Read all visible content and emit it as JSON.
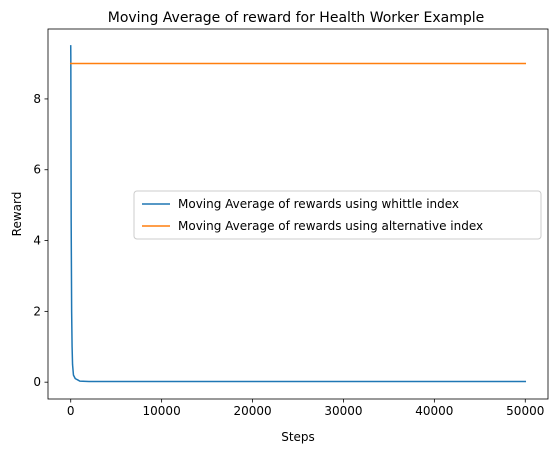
{
  "chart_data": {
    "type": "line",
    "title": "Moving Average of reward for Health Worker Example",
    "xlabel": "Steps",
    "ylabel": "Reward",
    "xlim": [
      -2500,
      52500
    ],
    "ylim": [
      -0.475,
      9.975
    ],
    "xticks": [
      0,
      10000,
      20000,
      30000,
      40000,
      50000
    ],
    "xtick_labels": [
      "0",
      "10000",
      "20000",
      "30000",
      "40000",
      "50000"
    ],
    "yticks": [
      0,
      2,
      4,
      6,
      8
    ],
    "ytick_labels": [
      "0",
      "2",
      "4",
      "6",
      "8"
    ],
    "grid": false,
    "legend_position": "center-right",
    "series": [
      {
        "name": "Moving Average of rewards using whittle index",
        "color": "#1f77b4",
        "x": [
          0,
          10,
          25,
          50,
          100,
          150,
          200,
          300,
          500,
          800,
          1000,
          2000,
          5000,
          10000,
          20000,
          30000,
          40000,
          50000
        ],
        "y": [
          9.5,
          9.2,
          7.5,
          4.5,
          2.0,
          1.0,
          0.5,
          0.2,
          0.1,
          0.06,
          0.03,
          0.02,
          0.02,
          0.02,
          0.02,
          0.02,
          0.02,
          0.02
        ]
      },
      {
        "name": "Moving Average of rewards using alternative index",
        "color": "#ff7f0e",
        "x": [
          0,
          50000
        ],
        "y": [
          9.0,
          9.0
        ]
      }
    ]
  }
}
